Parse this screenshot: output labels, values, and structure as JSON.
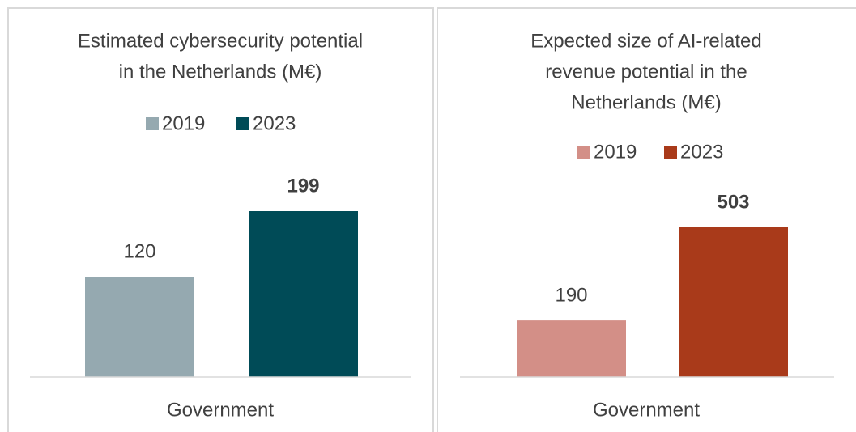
{
  "chart_data": [
    {
      "type": "bar",
      "title": [
        "Estimated cybersecurity potential",
        "in the Netherlands  (M€)"
      ],
      "categories": [
        "Government"
      ],
      "series": [
        {
          "name": "2019",
          "color": "#95a9b0",
          "values": [
            120
          ],
          "label_bold": false
        },
        {
          "name": "2023",
          "color": "#004b57",
          "values": [
            199
          ],
          "label_bold": true
        }
      ]
    },
    {
      "type": "bar",
      "title": [
        "Expected size of AI-related",
        "revenue potential in the",
        "Netherlands (M€)"
      ],
      "categories": [
        "Government"
      ],
      "series": [
        {
          "name": "2019",
          "color": "#d38f87",
          "values": [
            190
          ],
          "label_bold": false
        },
        {
          "name": "2023",
          "color": "#a93a1a",
          "values": [
            503
          ],
          "label_bold": true
        }
      ]
    }
  ]
}
